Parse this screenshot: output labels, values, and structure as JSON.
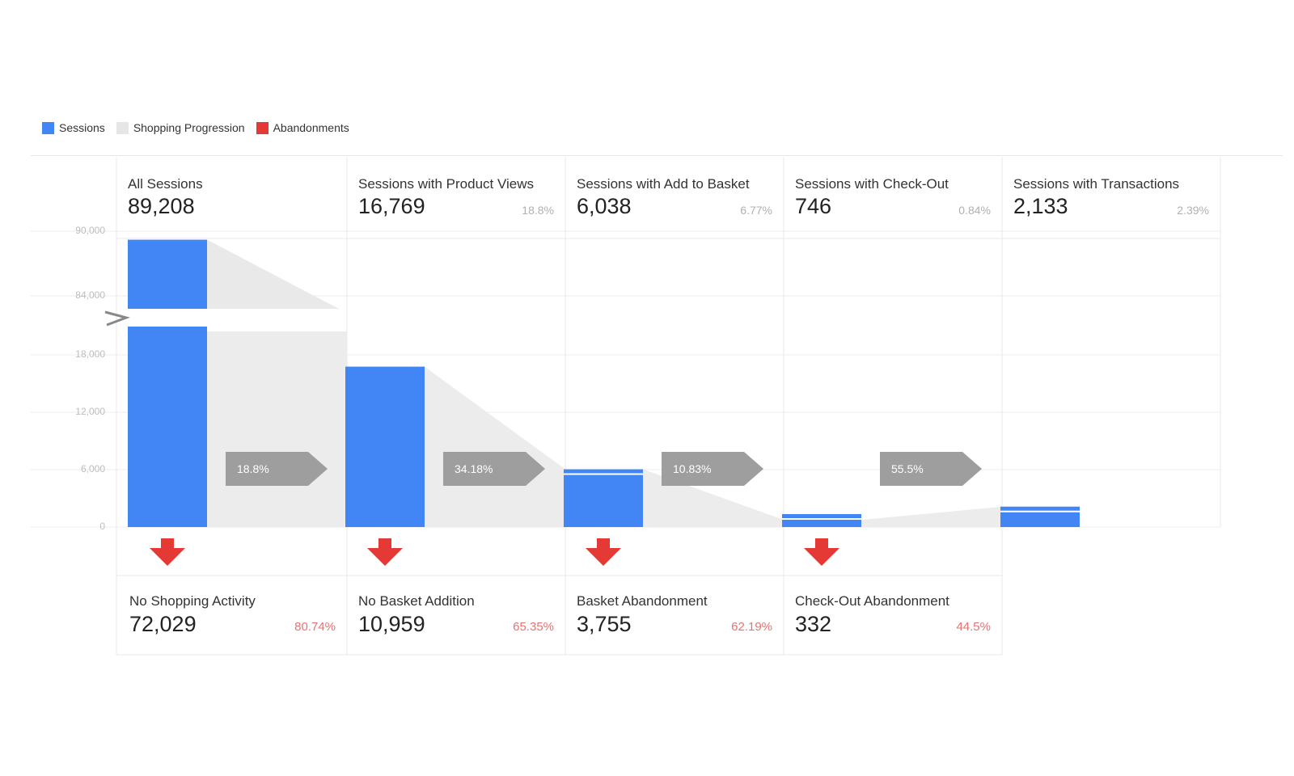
{
  "legend": [
    {
      "label": "Sessions",
      "color": "#4285f4"
    },
    {
      "label": "Shopping Progression",
      "color": "#e6e6e6"
    },
    {
      "label": "Abandonments",
      "color": "#e53935"
    }
  ],
  "chart_data": {
    "type": "bar",
    "subtype": "funnel",
    "y_ticks": [
      "90,000",
      "84,000",
      "18,000",
      "12,000",
      "6,000",
      "0"
    ],
    "axis_break": {
      "lower_max": 18000,
      "upper_range": [
        84000,
        90000
      ]
    },
    "categories": [
      "All Sessions",
      "Sessions with Product Views",
      "Sessions with Add to Basket",
      "Sessions with Check-Out",
      "Sessions with Transactions"
    ],
    "series": [
      {
        "name": "Sessions",
        "values": [
          89208,
          16769,
          6038,
          746,
          2133
        ],
        "color": "#4285f4"
      }
    ],
    "stages": [
      {
        "label": "All Sessions",
        "value_text": "89,208",
        "value": 89208,
        "pct": ""
      },
      {
        "label": "Sessions with Product Views",
        "value_text": "16,769",
        "value": 16769,
        "pct": "18.8%"
      },
      {
        "label": "Sessions with Add to Basket",
        "value_text": "6,038",
        "value": 6038,
        "pct": "6.77%"
      },
      {
        "label": "Sessions with Check-Out",
        "value_text": "746",
        "value": 746,
        "pct": "0.84%"
      },
      {
        "label": "Sessions with Transactions",
        "value_text": "2,133",
        "value": 2133,
        "pct": "2.39%"
      }
    ],
    "progression_rates": [
      "18.8%",
      "34.18%",
      "10.83%",
      "55.5%"
    ],
    "abandonments": [
      {
        "label": "No Shopping Activity",
        "value_text": "72,029",
        "value": 72029,
        "pct": "80.74%"
      },
      {
        "label": "No Basket Addition",
        "value_text": "10,959",
        "value": 10959,
        "pct": "65.35%"
      },
      {
        "label": "Basket Abandonment",
        "value_text": "3,755",
        "value": 3755,
        "pct": "62.19%"
      },
      {
        "label": "Check-Out Abandonment",
        "value_text": "332",
        "value": 332,
        "pct": "44.5%"
      }
    ],
    "grid": true
  }
}
